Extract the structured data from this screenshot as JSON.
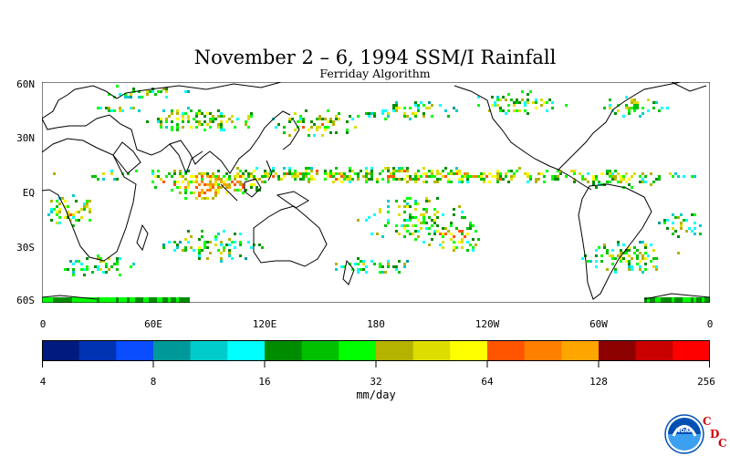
{
  "title": "November 2 – 6, 1994 SSM/I Rainfall",
  "subtitle": "Ferriday Algorithm",
  "map": {
    "lat_labels": [
      "60N",
      "30N",
      "EQ",
      "30S",
      "60S"
    ],
    "lon_labels": [
      "0",
      "60E",
      "120E",
      "180",
      "120W",
      "60W",
      "0"
    ],
    "lat_range": [
      -60,
      60
    ],
    "lon_range": [
      0,
      360
    ],
    "coastline_color": "#000000",
    "background_color": "#ffffff"
  },
  "colorbar": {
    "units": "mm/day",
    "tick_labels": [
      "4",
      "8",
      "16",
      "32",
      "64",
      "128",
      "256"
    ],
    "colors": [
      "#001a80",
      "#0033b3",
      "#0a4dff",
      "#009999",
      "#00cccc",
      "#00ffff",
      "#008c00",
      "#00c000",
      "#00ff00",
      "#b3b300",
      "#dddd00",
      "#ffff00",
      "#ff5500",
      "#ff7f00",
      "#ffa500",
      "#8c0000",
      "#c80000",
      "#ff0000"
    ]
  },
  "logo": {
    "name": "noaa-logo",
    "text": "NOAA",
    "letters": [
      "C",
      "D",
      "C"
    ],
    "colors": {
      "letters": "#d40000",
      "emblem": "#0050b4"
    }
  }
}
